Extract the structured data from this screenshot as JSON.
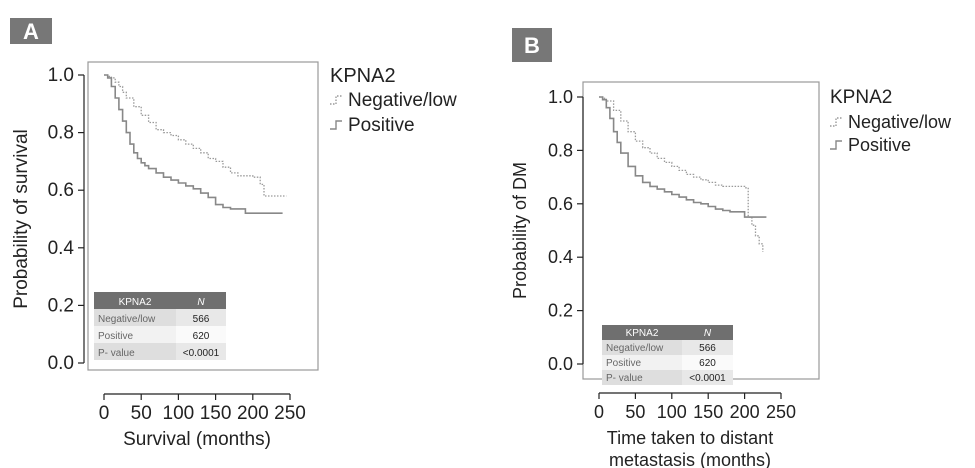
{
  "chart_data": [
    {
      "type": "line",
      "panel_label": "A",
      "xlabel": "Survival (months)",
      "ylabel": "Probability of survival",
      "xlim": [
        0,
        250
      ],
      "ylim": [
        0.0,
        1.0
      ],
      "xticks": [
        "0",
        "50",
        "100",
        "150",
        "200",
        "250"
      ],
      "yticks": [
        "0.0",
        "0.2",
        "0.4",
        "0.6",
        "0.8",
        "1.0"
      ],
      "grid": false,
      "legend": {
        "title": "KPNA2",
        "position": "right",
        "entries": [
          {
            "label": "Negative/low",
            "style": "dotted",
            "color": "#9a9a9a"
          },
          {
            "label": "Positive",
            "style": "solid",
            "color": "#888888"
          }
        ]
      },
      "series": [
        {
          "name": "Negative/low",
          "style": "dotted",
          "color": "#9a9a9a",
          "x": [
            0,
            5,
            10,
            15,
            20,
            25,
            30,
            40,
            50,
            60,
            70,
            80,
            90,
            100,
            110,
            120,
            130,
            140,
            150,
            160,
            170,
            180,
            190,
            200,
            210,
            215,
            225,
            245
          ],
          "y": [
            1.0,
            0.995,
            0.99,
            0.975,
            0.96,
            0.94,
            0.92,
            0.89,
            0.86,
            0.835,
            0.81,
            0.8,
            0.79,
            0.775,
            0.76,
            0.745,
            0.73,
            0.71,
            0.7,
            0.68,
            0.66,
            0.65,
            0.65,
            0.645,
            0.62,
            0.58,
            0.58,
            0.58
          ]
        },
        {
          "name": "Positive",
          "style": "solid",
          "color": "#888888",
          "x": [
            0,
            5,
            10,
            15,
            20,
            25,
            30,
            35,
            40,
            45,
            50,
            55,
            60,
            70,
            80,
            90,
            100,
            110,
            120,
            130,
            140,
            150,
            160,
            170,
            180,
            190,
            240
          ],
          "y": [
            1.0,
            0.99,
            0.96,
            0.92,
            0.88,
            0.84,
            0.8,
            0.76,
            0.73,
            0.71,
            0.695,
            0.685,
            0.675,
            0.66,
            0.645,
            0.635,
            0.625,
            0.615,
            0.605,
            0.59,
            0.575,
            0.55,
            0.54,
            0.535,
            0.535,
            0.52,
            0.52
          ]
        }
      ],
      "table": {
        "headers": [
          "KPNA2",
          "N"
        ],
        "rows": [
          [
            "Negative/low",
            "566"
          ],
          [
            "Positive",
            "620"
          ],
          [
            "P- value",
            "<0.0001"
          ]
        ]
      }
    },
    {
      "type": "line",
      "panel_label": "B",
      "xlabel": [
        "Time taken to distant",
        "metastasis (months)"
      ],
      "ylabel": "Probability of DM",
      "xlim": [
        0,
        250
      ],
      "ylim": [
        0.0,
        1.0
      ],
      "xticks": [
        "0",
        "50",
        "100",
        "150",
        "200",
        "250"
      ],
      "yticks": [
        "0.0",
        "0.2",
        "0.4",
        "0.6",
        "0.8",
        "1.0"
      ],
      "grid": false,
      "legend": {
        "title": "KPNA2",
        "position": "right",
        "entries": [
          {
            "label": "Negative/low",
            "style": "dotted",
            "color": "#9a9a9a"
          },
          {
            "label": "Positive",
            "style": "solid",
            "color": "#888888"
          }
        ]
      },
      "series": [
        {
          "name": "Negative/low",
          "style": "dotted",
          "color": "#9a9a9a",
          "x": [
            0,
            5,
            10,
            20,
            30,
            40,
            50,
            60,
            70,
            80,
            90,
            100,
            110,
            120,
            130,
            140,
            150,
            160,
            170,
            180,
            190,
            200,
            205,
            210,
            215,
            220,
            225
          ],
          "y": [
            1.0,
            0.995,
            0.985,
            0.95,
            0.91,
            0.87,
            0.835,
            0.81,
            0.79,
            0.77,
            0.755,
            0.74,
            0.725,
            0.71,
            0.7,
            0.69,
            0.68,
            0.67,
            0.665,
            0.665,
            0.665,
            0.66,
            0.55,
            0.52,
            0.48,
            0.45,
            0.42
          ]
        },
        {
          "name": "Positive",
          "style": "solid",
          "color": "#888888",
          "x": [
            0,
            5,
            10,
            15,
            20,
            25,
            30,
            40,
            50,
            60,
            70,
            80,
            90,
            100,
            110,
            120,
            130,
            140,
            150,
            160,
            170,
            180,
            190,
            200,
            230
          ],
          "y": [
            1.0,
            0.99,
            0.96,
            0.92,
            0.87,
            0.83,
            0.79,
            0.74,
            0.705,
            0.68,
            0.665,
            0.655,
            0.645,
            0.635,
            0.625,
            0.615,
            0.605,
            0.6,
            0.59,
            0.58,
            0.575,
            0.57,
            0.57,
            0.55,
            0.55
          ]
        }
      ],
      "table": {
        "headers": [
          "KPNA2",
          "N"
        ],
        "rows": [
          [
            "Negative/low",
            "566"
          ],
          [
            "Positive",
            "620"
          ],
          [
            "P- value",
            "<0.0001"
          ]
        ]
      }
    }
  ]
}
